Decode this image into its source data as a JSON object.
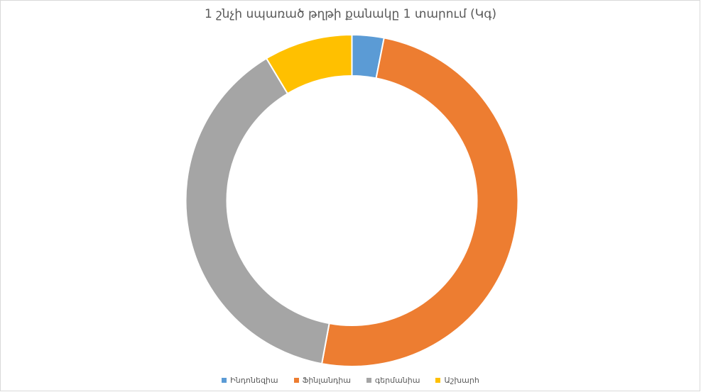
{
  "chart_data": {
    "type": "doughnut",
    "title": "1 շնչի սպառած թղթի քանակը 1 տարում (Կգ)",
    "categories": [
      "Ինդոնեզիա",
      "Ֆինլանդիա",
      "գերմանիա",
      "Աշխարհ"
    ],
    "values": [
      3.1,
      49.8,
      38.5,
      8.6
    ],
    "colors": [
      "#5b9bd5",
      "#ed7d31",
      "#a5a5a5",
      "#ffc000"
    ],
    "legend_position": "bottom"
  }
}
